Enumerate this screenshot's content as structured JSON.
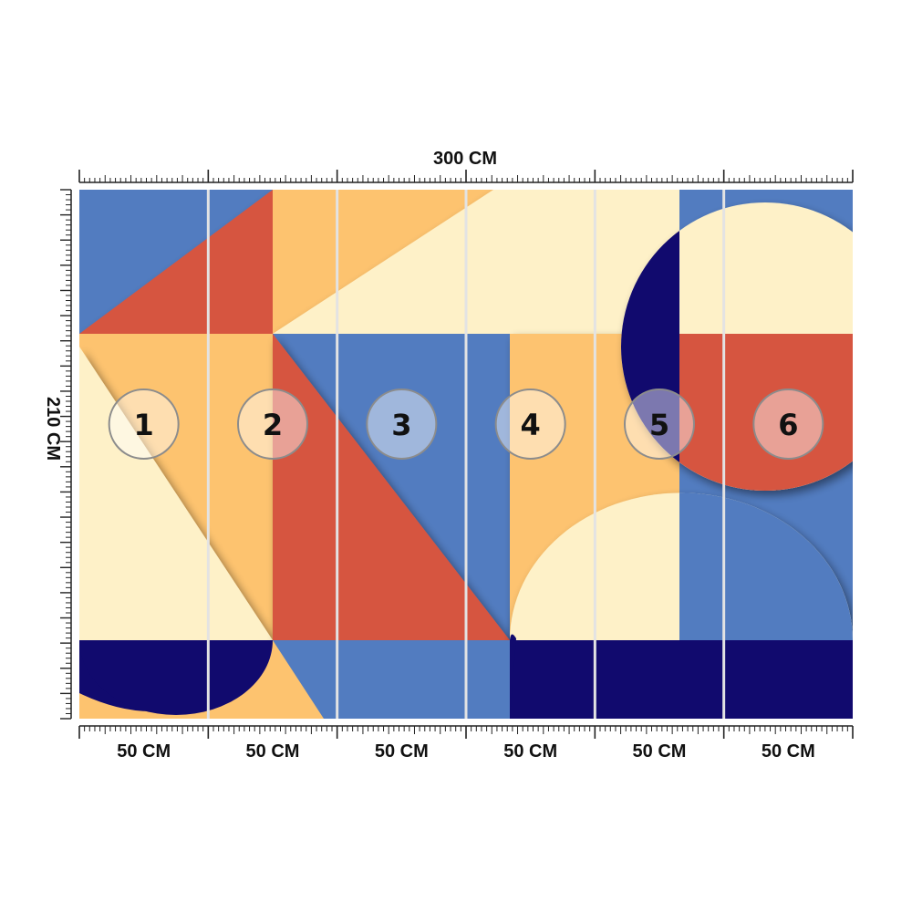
{
  "dimensions": {
    "width_label": "300 CM",
    "height_label": "210 CM",
    "panel_width_label": "50 CM"
  },
  "panels": [
    {
      "number": "1",
      "width_label": "50 CM"
    },
    {
      "number": "2",
      "width_label": "50 CM"
    },
    {
      "number": "3",
      "width_label": "50 CM"
    },
    {
      "number": "4",
      "width_label": "50 CM"
    },
    {
      "number": "5",
      "width_label": "50 CM"
    },
    {
      "number": "6",
      "width_label": "50 CM"
    }
  ],
  "colors": {
    "blue": "#527cc0",
    "red": "#d65540",
    "orange": "#fdc36f",
    "cream": "#fef1c8",
    "navy": "#110a6e",
    "separator": "#e3e3e3"
  }
}
